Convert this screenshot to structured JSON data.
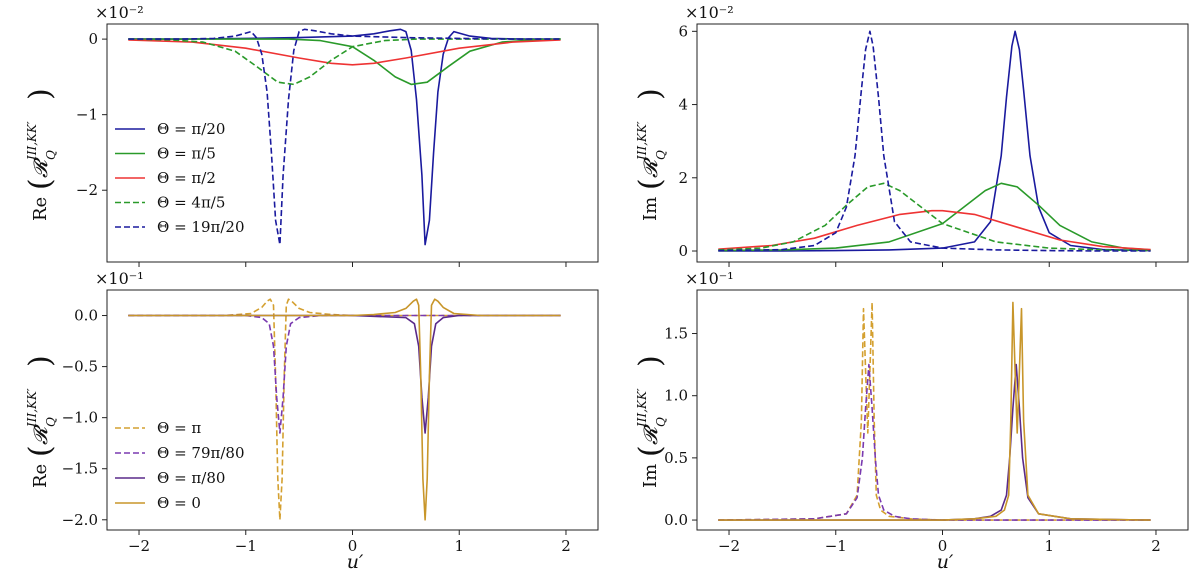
{
  "figure": {
    "xlabel": "u′",
    "ylabel_re_prefix": "Re",
    "ylabel_im_prefix": "Im",
    "ylabel_symbol": "𝓡",
    "ylabel_sub": "Q",
    "ylabel_sup": "III,KK′"
  },
  "chart_data": [
    {
      "id": "re-top",
      "type": "line",
      "ylabel": "Re(R_Q^{III,KK'})",
      "scale_label": "×10⁻²",
      "xlim": [
        -2.3,
        2.3
      ],
      "ylim": [
        -2.95,
        0.2
      ],
      "xticks": [
        -2,
        -1,
        0,
        1,
        2
      ],
      "yticks": [
        0,
        -1,
        -2
      ],
      "legend_position": "lower-left",
      "series": [
        {
          "name": "Θ = π/20",
          "color": "#1a1a9e",
          "dash": "solid",
          "x": [
            -2.1,
            -1.5,
            -1.0,
            -0.5,
            0.0,
            0.2,
            0.35,
            0.45,
            0.5,
            0.55,
            0.6,
            0.65,
            0.68,
            0.72,
            0.76,
            0.8,
            0.85,
            0.9,
            0.95,
            1.0,
            1.1,
            1.3,
            1.6,
            1.95
          ],
          "values": [
            0,
            0,
            0.01,
            0.02,
            0.04,
            0.07,
            0.11,
            0.13,
            0.1,
            -0.15,
            -0.8,
            -1.8,
            -2.72,
            -2.4,
            -1.5,
            -0.7,
            -0.2,
            0.02,
            0.1,
            0.08,
            0.04,
            0.01,
            0,
            0
          ]
        },
        {
          "name": "Θ = π/5",
          "color": "#2a9a2a",
          "dash": "solid",
          "x": [
            -2.1,
            -1.5,
            -1.0,
            -0.6,
            -0.3,
            0.0,
            0.2,
            0.4,
            0.55,
            0.7,
            0.9,
            1.1,
            1.4,
            1.7,
            1.95
          ],
          "values": [
            0,
            0,
            0,
            0.0,
            -0.02,
            -0.1,
            -0.28,
            -0.5,
            -0.6,
            -0.57,
            -0.36,
            -0.16,
            -0.04,
            -0.01,
            0
          ]
        },
        {
          "name": "Θ = π/2",
          "color": "#ee3333",
          "dash": "solid",
          "x": [
            -2.1,
            -1.5,
            -1.0,
            -0.5,
            -0.2,
            0.0,
            0.2,
            0.5,
            1.0,
            1.5,
            1.95
          ],
          "values": [
            -0.01,
            -0.04,
            -0.12,
            -0.25,
            -0.32,
            -0.34,
            -0.32,
            -0.25,
            -0.12,
            -0.04,
            -0.01
          ]
        },
        {
          "name": "Θ = 4π/5",
          "color": "#2a9a2a",
          "dash": "dashed",
          "x": [
            -2.1,
            -1.7,
            -1.4,
            -1.1,
            -0.9,
            -0.7,
            -0.55,
            -0.4,
            -0.2,
            0.0,
            0.3,
            0.6,
            1.0,
            1.5,
            1.95
          ],
          "values": [
            0,
            -0.01,
            -0.04,
            -0.16,
            -0.36,
            -0.57,
            -0.6,
            -0.5,
            -0.28,
            -0.1,
            -0.02,
            0.0,
            0,
            0,
            0
          ]
        },
        {
          "name": "Θ = 19π/20",
          "color": "#1a1a9e",
          "dash": "dashed",
          "x": [
            -2.1,
            -1.6,
            -1.3,
            -1.1,
            -1.0,
            -0.95,
            -0.9,
            -0.85,
            -0.8,
            -0.76,
            -0.72,
            -0.68,
            -0.65,
            -0.6,
            -0.55,
            -0.5,
            -0.45,
            -0.35,
            -0.2,
            0.0,
            0.5,
            1.0,
            1.5,
            1.95
          ],
          "values": [
            0,
            0,
            0.01,
            0.04,
            0.08,
            0.1,
            0.02,
            -0.2,
            -0.7,
            -1.5,
            -2.4,
            -2.72,
            -1.8,
            -0.8,
            -0.15,
            0.1,
            0.13,
            0.11,
            0.07,
            0.04,
            0.02,
            0.01,
            0,
            0
          ]
        }
      ]
    },
    {
      "id": "im-top",
      "type": "line",
      "ylabel": "Im(R_Q^{III,KK'})",
      "scale_label": "×10⁻²",
      "xlim": [
        -2.3,
        2.3
      ],
      "ylim": [
        -0.3,
        6.2
      ],
      "xticks": [
        -2,
        -1,
        0,
        1,
        2
      ],
      "yticks": [
        0,
        2,
        4,
        6
      ],
      "series": [
        {
          "name": "Θ = π/20",
          "color": "#1a1a9e",
          "dash": "solid",
          "x": [
            -2.1,
            -1.5,
            -1.0,
            -0.5,
            0.0,
            0.3,
            0.45,
            0.55,
            0.6,
            0.65,
            0.68,
            0.72,
            0.76,
            0.82,
            0.9,
            1.0,
            1.2,
            1.5,
            1.95
          ],
          "values": [
            0,
            0,
            0.01,
            0.03,
            0.08,
            0.25,
            0.8,
            2.6,
            4.2,
            5.6,
            6.0,
            5.5,
            4.4,
            2.6,
            1.2,
            0.5,
            0.15,
            0.04,
            0.01
          ]
        },
        {
          "name": "Θ = π/5",
          "color": "#2a9a2a",
          "dash": "solid",
          "x": [
            -2.1,
            -1.5,
            -1.0,
            -0.5,
            0.0,
            0.2,
            0.4,
            0.55,
            0.7,
            0.9,
            1.1,
            1.4,
            1.7,
            1.95
          ],
          "values": [
            0.01,
            0.03,
            0.08,
            0.25,
            0.75,
            1.2,
            1.65,
            1.85,
            1.75,
            1.25,
            0.7,
            0.25,
            0.08,
            0.03
          ]
        },
        {
          "name": "Θ = π/2",
          "color": "#ee3333",
          "dash": "solid",
          "x": [
            -2.1,
            -1.6,
            -1.2,
            -0.8,
            -0.4,
            -0.1,
            0.0,
            0.3,
            0.7,
            1.1,
            1.5,
            1.95
          ],
          "values": [
            0.05,
            0.15,
            0.35,
            0.7,
            1.0,
            1.1,
            1.1,
            1.0,
            0.65,
            0.3,
            0.12,
            0.04
          ]
        },
        {
          "name": "Θ = 4π/5",
          "color": "#2a9a2a",
          "dash": "dashed",
          "x": [
            -2.1,
            -1.7,
            -1.4,
            -1.1,
            -0.9,
            -0.7,
            -0.55,
            -0.4,
            -0.2,
            0.0,
            0.5,
            1.0,
            1.5,
            1.95
          ],
          "values": [
            0.03,
            0.08,
            0.25,
            0.7,
            1.25,
            1.75,
            1.85,
            1.65,
            1.2,
            0.75,
            0.25,
            0.08,
            0.03,
            0.01
          ]
        },
        {
          "name": "Θ = 19π/20",
          "color": "#1a1a9e",
          "dash": "dashed",
          "x": [
            -2.1,
            -1.5,
            -1.2,
            -1.0,
            -0.9,
            -0.82,
            -0.76,
            -0.72,
            -0.68,
            -0.65,
            -0.6,
            -0.55,
            -0.45,
            -0.3,
            0.0,
            0.5,
            1.0,
            1.5,
            1.95
          ],
          "values": [
            0.01,
            0.04,
            0.15,
            0.5,
            1.2,
            2.6,
            4.4,
            5.5,
            6.0,
            5.6,
            4.2,
            2.6,
            0.8,
            0.25,
            0.08,
            0.03,
            0.01,
            0,
            0
          ]
        }
      ]
    },
    {
      "id": "re-bottom",
      "type": "line",
      "ylabel": "Re(R_Q^{III,KK'})",
      "scale_label": "×10⁻¹",
      "xlim": [
        -2.3,
        2.3
      ],
      "ylim": [
        -2.1,
        0.25
      ],
      "xticks": [
        -2,
        -1,
        0,
        1,
        2
      ],
      "yticks": [
        0.0,
        -0.5,
        -1.0,
        -1.5,
        -2.0
      ],
      "legend_position": "lower-left",
      "series": [
        {
          "name": "Θ = π",
          "color": "#d4a030",
          "dash": "dashed",
          "x": [
            -2.1,
            -1.2,
            -0.95,
            -0.85,
            -0.8,
            -0.77,
            -0.74,
            -0.72,
            -0.7,
            -0.68,
            -0.66,
            -0.64,
            -0.62,
            -0.6,
            -0.57,
            -0.5,
            -0.4,
            -0.2,
            0.0,
            1.0,
            1.95
          ],
          "values": [
            0,
            0.0,
            0.02,
            0.08,
            0.14,
            0.16,
            0.1,
            -0.6,
            -1.6,
            -2.0,
            -1.6,
            -0.6,
            0.1,
            0.16,
            0.14,
            0.07,
            0.03,
            0.01,
            0,
            0,
            0
          ]
        },
        {
          "name": "Θ = 79π/80",
          "color": "#7a3ab0",
          "dash": "dashed",
          "x": [
            -2.1,
            -1.0,
            -0.85,
            -0.78,
            -0.74,
            -0.71,
            -0.68,
            -0.65,
            -0.62,
            -0.58,
            -0.5,
            -0.3,
            0.0,
            1.0,
            1.95
          ],
          "values": [
            0,
            0.0,
            -0.02,
            -0.08,
            -0.3,
            -0.8,
            -1.15,
            -0.8,
            -0.3,
            -0.08,
            -0.02,
            0.0,
            0,
            0,
            0
          ]
        },
        {
          "name": "Θ = π/80",
          "color": "#5a2a8a",
          "dash": "solid",
          "x": [
            -2.1,
            -1.0,
            0.0,
            0.5,
            0.58,
            0.62,
            0.65,
            0.68,
            0.71,
            0.74,
            0.78,
            0.85,
            1.0,
            1.95
          ],
          "values": [
            0,
            0,
            0,
            -0.02,
            -0.08,
            -0.3,
            -0.8,
            -1.15,
            -0.8,
            -0.3,
            -0.08,
            -0.02,
            0.0,
            0
          ]
        },
        {
          "name": "Θ = 0",
          "color": "#c8962a",
          "dash": "solid",
          "x": [
            -2.1,
            -1.0,
            0.0,
            0.2,
            0.4,
            0.5,
            0.57,
            0.6,
            0.62,
            0.64,
            0.66,
            0.68,
            0.7,
            0.72,
            0.74,
            0.77,
            0.8,
            0.85,
            0.95,
            1.2,
            1.95
          ],
          "values": [
            0,
            0,
            0,
            0.01,
            0.03,
            0.07,
            0.14,
            0.16,
            0.1,
            -0.6,
            -1.6,
            -2.0,
            -1.6,
            -0.6,
            0.1,
            0.16,
            0.14,
            0.08,
            0.02,
            0.0,
            0
          ]
        }
      ]
    },
    {
      "id": "im-bottom",
      "type": "line",
      "ylabel": "Im(R_Q^{III,KK'})",
      "scale_label": "×10⁻¹",
      "xlim": [
        -2.3,
        2.3
      ],
      "ylim": [
        -0.08,
        1.85
      ],
      "xticks": [
        -2,
        -1,
        0,
        1,
        2
      ],
      "yticks": [
        0.0,
        0.5,
        1.0,
        1.5
      ],
      "series": [
        {
          "name": "Θ = π",
          "color": "#d4a030",
          "dash": "dashed",
          "x": [
            -2.1,
            -1.2,
            -0.9,
            -0.8,
            -0.76,
            -0.74,
            -0.72,
            -0.7,
            -0.68,
            -0.66,
            -0.64,
            -0.62,
            -0.58,
            -0.5,
            -0.3,
            0.0,
            1.0,
            1.95
          ],
          "values": [
            0,
            0.01,
            0.05,
            0.2,
            0.8,
            1.7,
            1.2,
            0.7,
            1.2,
            1.75,
            0.8,
            0.2,
            0.08,
            0.03,
            0.01,
            0,
            0,
            0
          ]
        },
        {
          "name": "Θ = 79π/80",
          "color": "#7a3ab0",
          "dash": "dashed",
          "x": [
            -2.1,
            -1.2,
            -0.9,
            -0.8,
            -0.75,
            -0.72,
            -0.69,
            -0.66,
            -0.63,
            -0.6,
            -0.55,
            -0.45,
            -0.3,
            0.0,
            1.0,
            1.95
          ],
          "values": [
            0,
            0.01,
            0.05,
            0.18,
            0.5,
            0.9,
            1.25,
            0.9,
            0.5,
            0.2,
            0.08,
            0.03,
            0.01,
            0,
            0,
            0
          ]
        },
        {
          "name": "Θ = π/80",
          "color": "#5a2a8a",
          "dash": "solid",
          "x": [
            -2.1,
            -1.0,
            0.0,
            0.3,
            0.45,
            0.55,
            0.6,
            0.63,
            0.66,
            0.69,
            0.72,
            0.75,
            0.8,
            0.9,
            1.2,
            1.95
          ],
          "values": [
            0,
            0,
            0,
            0.01,
            0.03,
            0.08,
            0.2,
            0.5,
            0.9,
            1.25,
            0.9,
            0.5,
            0.18,
            0.05,
            0.01,
            0
          ]
        },
        {
          "name": "Θ = 0",
          "color": "#c8962a",
          "dash": "solid",
          "x": [
            -2.1,
            -1.0,
            0.0,
            0.3,
            0.5,
            0.58,
            0.62,
            0.64,
            0.66,
            0.68,
            0.7,
            0.72,
            0.74,
            0.76,
            0.8,
            0.9,
            1.2,
            1.95
          ],
          "values": [
            0,
            0,
            0,
            0.01,
            0.03,
            0.08,
            0.2,
            0.8,
            1.75,
            1.2,
            0.7,
            1.2,
            1.7,
            0.8,
            0.2,
            0.05,
            0.01,
            0
          ]
        }
      ]
    }
  ]
}
